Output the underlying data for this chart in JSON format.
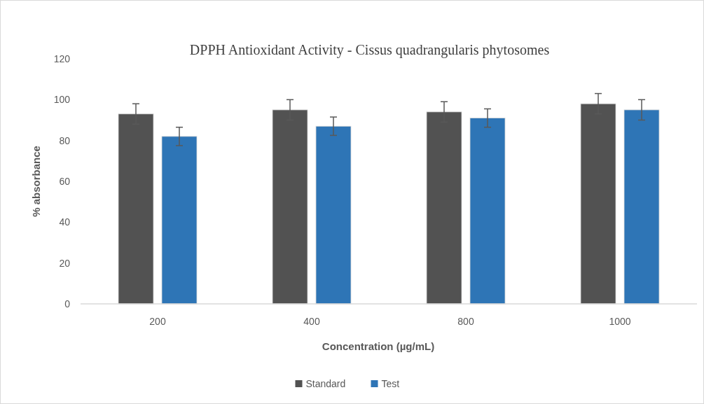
{
  "chart_data": {
    "type": "bar",
    "title": "DPPH Antioxidant  Activity  - Cissus quadrangularis phytosomes",
    "xlabel": "Concentration (µg/mL)",
    "ylabel": "% absorbance",
    "categories": [
      "200",
      "400",
      "800",
      "1000"
    ],
    "series": [
      {
        "name": "Standard",
        "color": "#525252",
        "values": [
          93,
          95,
          94,
          98
        ],
        "errors": [
          5,
          5,
          5,
          5
        ]
      },
      {
        "name": "Test",
        "color": "#2e75b6",
        "values": [
          82,
          87,
          91,
          95
        ],
        "errors": [
          4.5,
          4.5,
          4.5,
          5
        ]
      }
    ],
    "ylim": [
      0,
      120
    ],
    "yticks": [
      0,
      20,
      40,
      60,
      80,
      100,
      120
    ],
    "grid": false,
    "legend": "bottom"
  }
}
